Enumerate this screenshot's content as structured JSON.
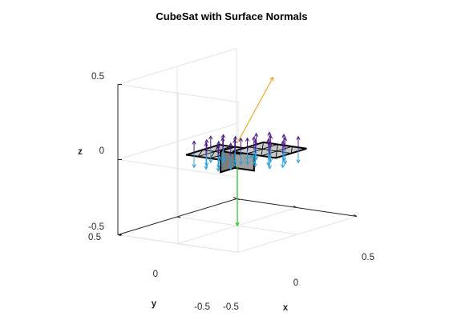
{
  "chart_data": {
    "type": "3d-quiver",
    "title": "CubeSat with Surface Normals",
    "xlabel": "x",
    "ylabel": "y",
    "zlabel": "z",
    "xlim": [
      -0.5,
      0.5
    ],
    "ylim": [
      -0.5,
      0.5
    ],
    "zlim": [
      -0.5,
      0.5
    ],
    "x_ticks": [
      "-0.5",
      "0",
      "0.5"
    ],
    "y_ticks": [
      "-0.5",
      "0",
      "0.5"
    ],
    "z_ticks": [
      "-0.5",
      "0",
      "0.5"
    ],
    "grid": true,
    "body": {
      "description": "CubeSat body with two deployed triangulated solar panels",
      "panel_fill": "#c9c9c9",
      "edge_color": "#000000"
    },
    "normal_colors": {
      "top_faces": "#4b1a86",
      "bottom_faces": "#2a9fd8"
    },
    "vectors": [
      {
        "from": [
          0,
          0,
          0.05
        ],
        "to": [
          0.1,
          -0.2,
          0.45
        ],
        "color": "#f5a623"
      },
      {
        "from": [
          0,
          0,
          -0.1
        ],
        "to": [
          0,
          0,
          -0.5
        ],
        "color": "#3cc83c"
      }
    ]
  }
}
